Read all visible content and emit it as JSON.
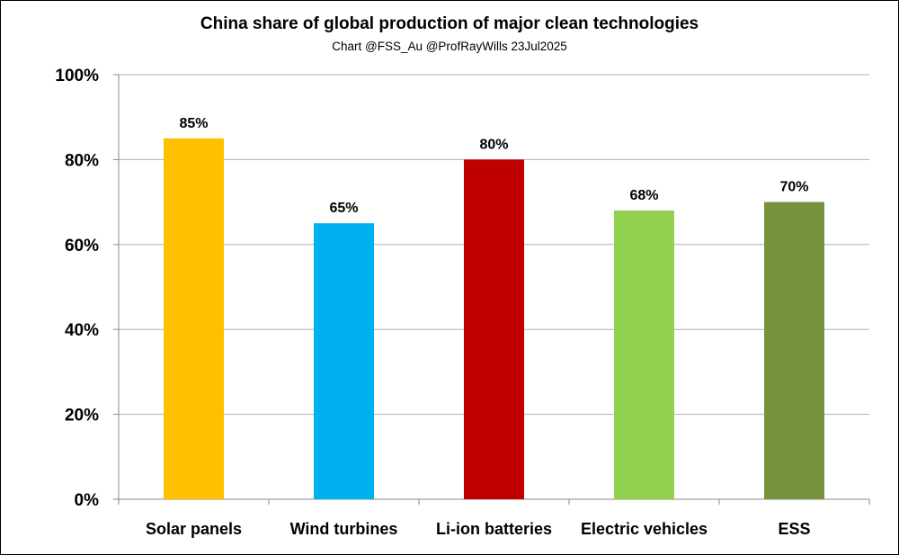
{
  "chart_data": {
    "type": "bar",
    "title": "China share of global production of major clean technologies",
    "subtitle": "Chart @FSS_Au @ProfRayWills 23Jul2025",
    "categories": [
      "Solar panels",
      "Wind turbines",
      "Li-ion batteries",
      "Electric vehicles",
      "ESS"
    ],
    "values": [
      85,
      65,
      80,
      68,
      70
    ],
    "data_labels": [
      "85%",
      "65%",
      "80%",
      "68%",
      "70%"
    ],
    "colors": [
      "#FFC000",
      "#00B0F0",
      "#C00000",
      "#92D050",
      "#76923C"
    ],
    "xlabel": "",
    "ylabel": "",
    "ylim": [
      0,
      100
    ],
    "yticks": [
      0,
      20,
      40,
      60,
      80,
      100
    ],
    "ytick_labels": [
      "0%",
      "20%",
      "40%",
      "60%",
      "80%",
      "100%"
    ],
    "grid": true,
    "legend": "none"
  }
}
